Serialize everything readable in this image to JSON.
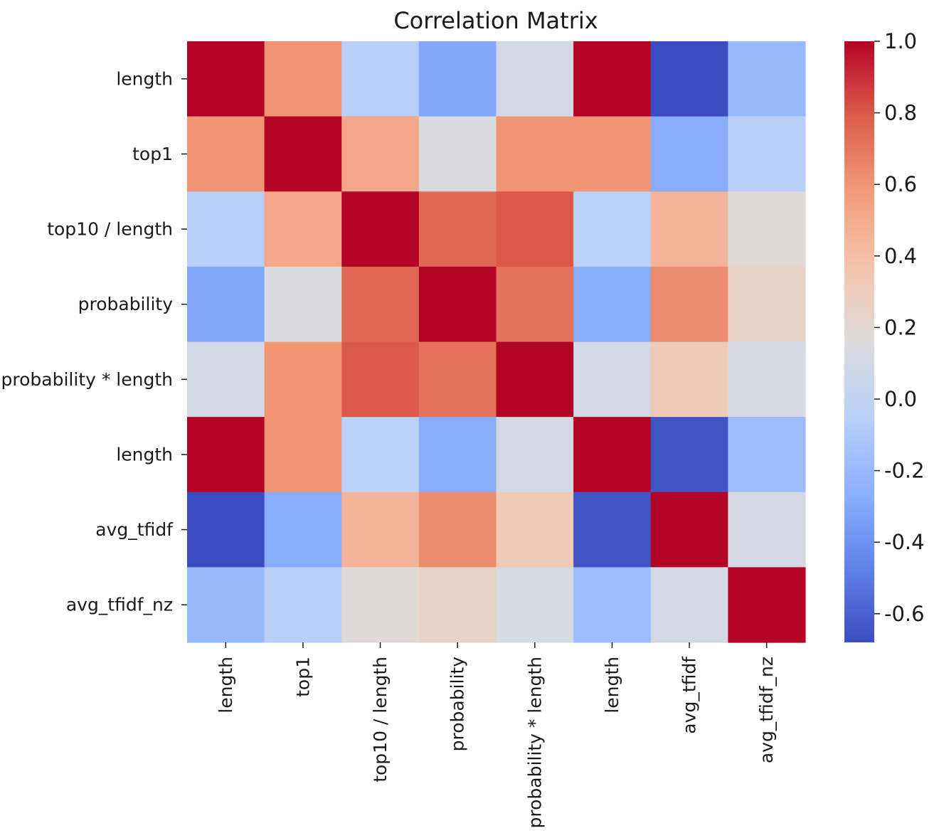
{
  "chart_data": {
    "type": "heatmap",
    "title": "Correlation Matrix",
    "xlabel": "",
    "ylabel": "",
    "row_labels": [
      "length",
      "top1",
      "top10 / length",
      "probability",
      "probability * length",
      "length",
      "avg_tfidf",
      "avg_tfidf_nz"
    ],
    "col_labels": [
      "length",
      "top1",
      "top10 / length",
      "probability",
      "probability * length",
      "length",
      "avg_tfidf",
      "avg_tfidf_nz"
    ],
    "values": [
      [
        1.0,
        0.6,
        -0.05,
        -0.3,
        0.1,
        1.0,
        -0.68,
        -0.2
      ],
      [
        0.6,
        1.0,
        0.52,
        0.15,
        0.6,
        0.6,
        -0.28,
        -0.05
      ],
      [
        -0.05,
        0.52,
        1.0,
        0.75,
        0.8,
        -0.03,
        0.45,
        0.18
      ],
      [
        -0.3,
        0.15,
        0.75,
        1.0,
        0.72,
        -0.28,
        0.63,
        0.25
      ],
      [
        0.1,
        0.6,
        0.8,
        0.72,
        1.0,
        0.1,
        0.32,
        0.12
      ],
      [
        1.0,
        0.6,
        -0.03,
        -0.28,
        0.1,
        1.0,
        -0.65,
        -0.18
      ],
      [
        -0.68,
        -0.28,
        0.45,
        0.63,
        0.32,
        -0.65,
        1.0,
        0.1
      ],
      [
        -0.2,
        -0.05,
        0.18,
        0.25,
        0.12,
        -0.18,
        0.1,
        1.0
      ]
    ],
    "colormap": "coolwarm",
    "vmin": -0.68,
    "vmax": 1.0,
    "colorbar_ticks": [
      1.0,
      0.8,
      0.6,
      0.4,
      0.2,
      0.0,
      -0.2,
      -0.4,
      -0.6
    ],
    "colorbar_tick_labels": [
      "1.0",
      "0.8",
      "0.6",
      "0.4",
      "0.2",
      "0.0",
      "-0.2",
      "-0.4",
      "-0.6"
    ],
    "colormap_stops": [
      "#3b4cc0",
      "#6282ea",
      "#8db0fe",
      "#b8d0f9",
      "#dddcdc",
      "#f5c4ac",
      "#f39b7a",
      "#dc5d4a",
      "#b40426"
    ]
  }
}
